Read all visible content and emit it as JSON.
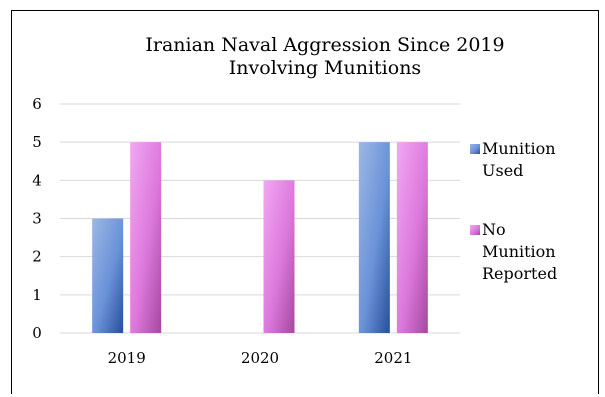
{
  "chart_data": {
    "type": "bar",
    "title": [
      "Iranian Naval Aggression Since 2019",
      "Involving Munitions"
    ],
    "categories": [
      "2019",
      "2020",
      "2021"
    ],
    "series": [
      {
        "name": [
          "Munition",
          "Used"
        ],
        "values": [
          3,
          0,
          5
        ],
        "color": "#4F7CC9"
      },
      {
        "name": [
          "No",
          "Munition",
          "Reported"
        ],
        "values": [
          5,
          4,
          5
        ],
        "color": "#D36BD6"
      }
    ],
    "ylim": [
      0,
      6
    ],
    "yticks": [
      "0",
      "1",
      "2",
      "3",
      "4",
      "5",
      "6"
    ],
    "grid": true,
    "legend_position": "right"
  }
}
